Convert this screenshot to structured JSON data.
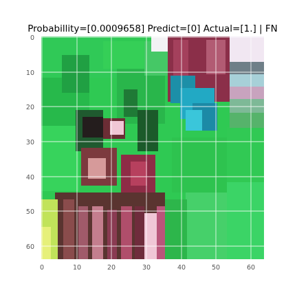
{
  "title": "Probabillity=[0.0009658] Predict=[0] Actual=[1.] | FN",
  "image": {
    "description_free": true,
    "pixel_grid_size": 64,
    "x_ticks": [
      "0",
      "10",
      "20",
      "30",
      "40",
      "50",
      "60"
    ],
    "y_ticks": [
      "0",
      "10",
      "20",
      "30",
      "40",
      "50",
      "60"
    ],
    "grid": true
  },
  "colors": {
    "foliage_bright": "#35d35a",
    "foliage_mid": "#28b84a",
    "foliage_dark": "#1d7a36",
    "canopy_highlight": "#f4f4f4",
    "pink_top": "#f0c8e6",
    "maroon": "#8a2f46",
    "maroon_dark": "#5a1a2c",
    "teal": "#1f9bb5",
    "cyan": "#2ec3d8",
    "pink_light": "#e8a7c0",
    "yellow_green": "#c6e85a",
    "grey_blue": "#7aa6b6",
    "gridline": "#ffffff"
  }
}
